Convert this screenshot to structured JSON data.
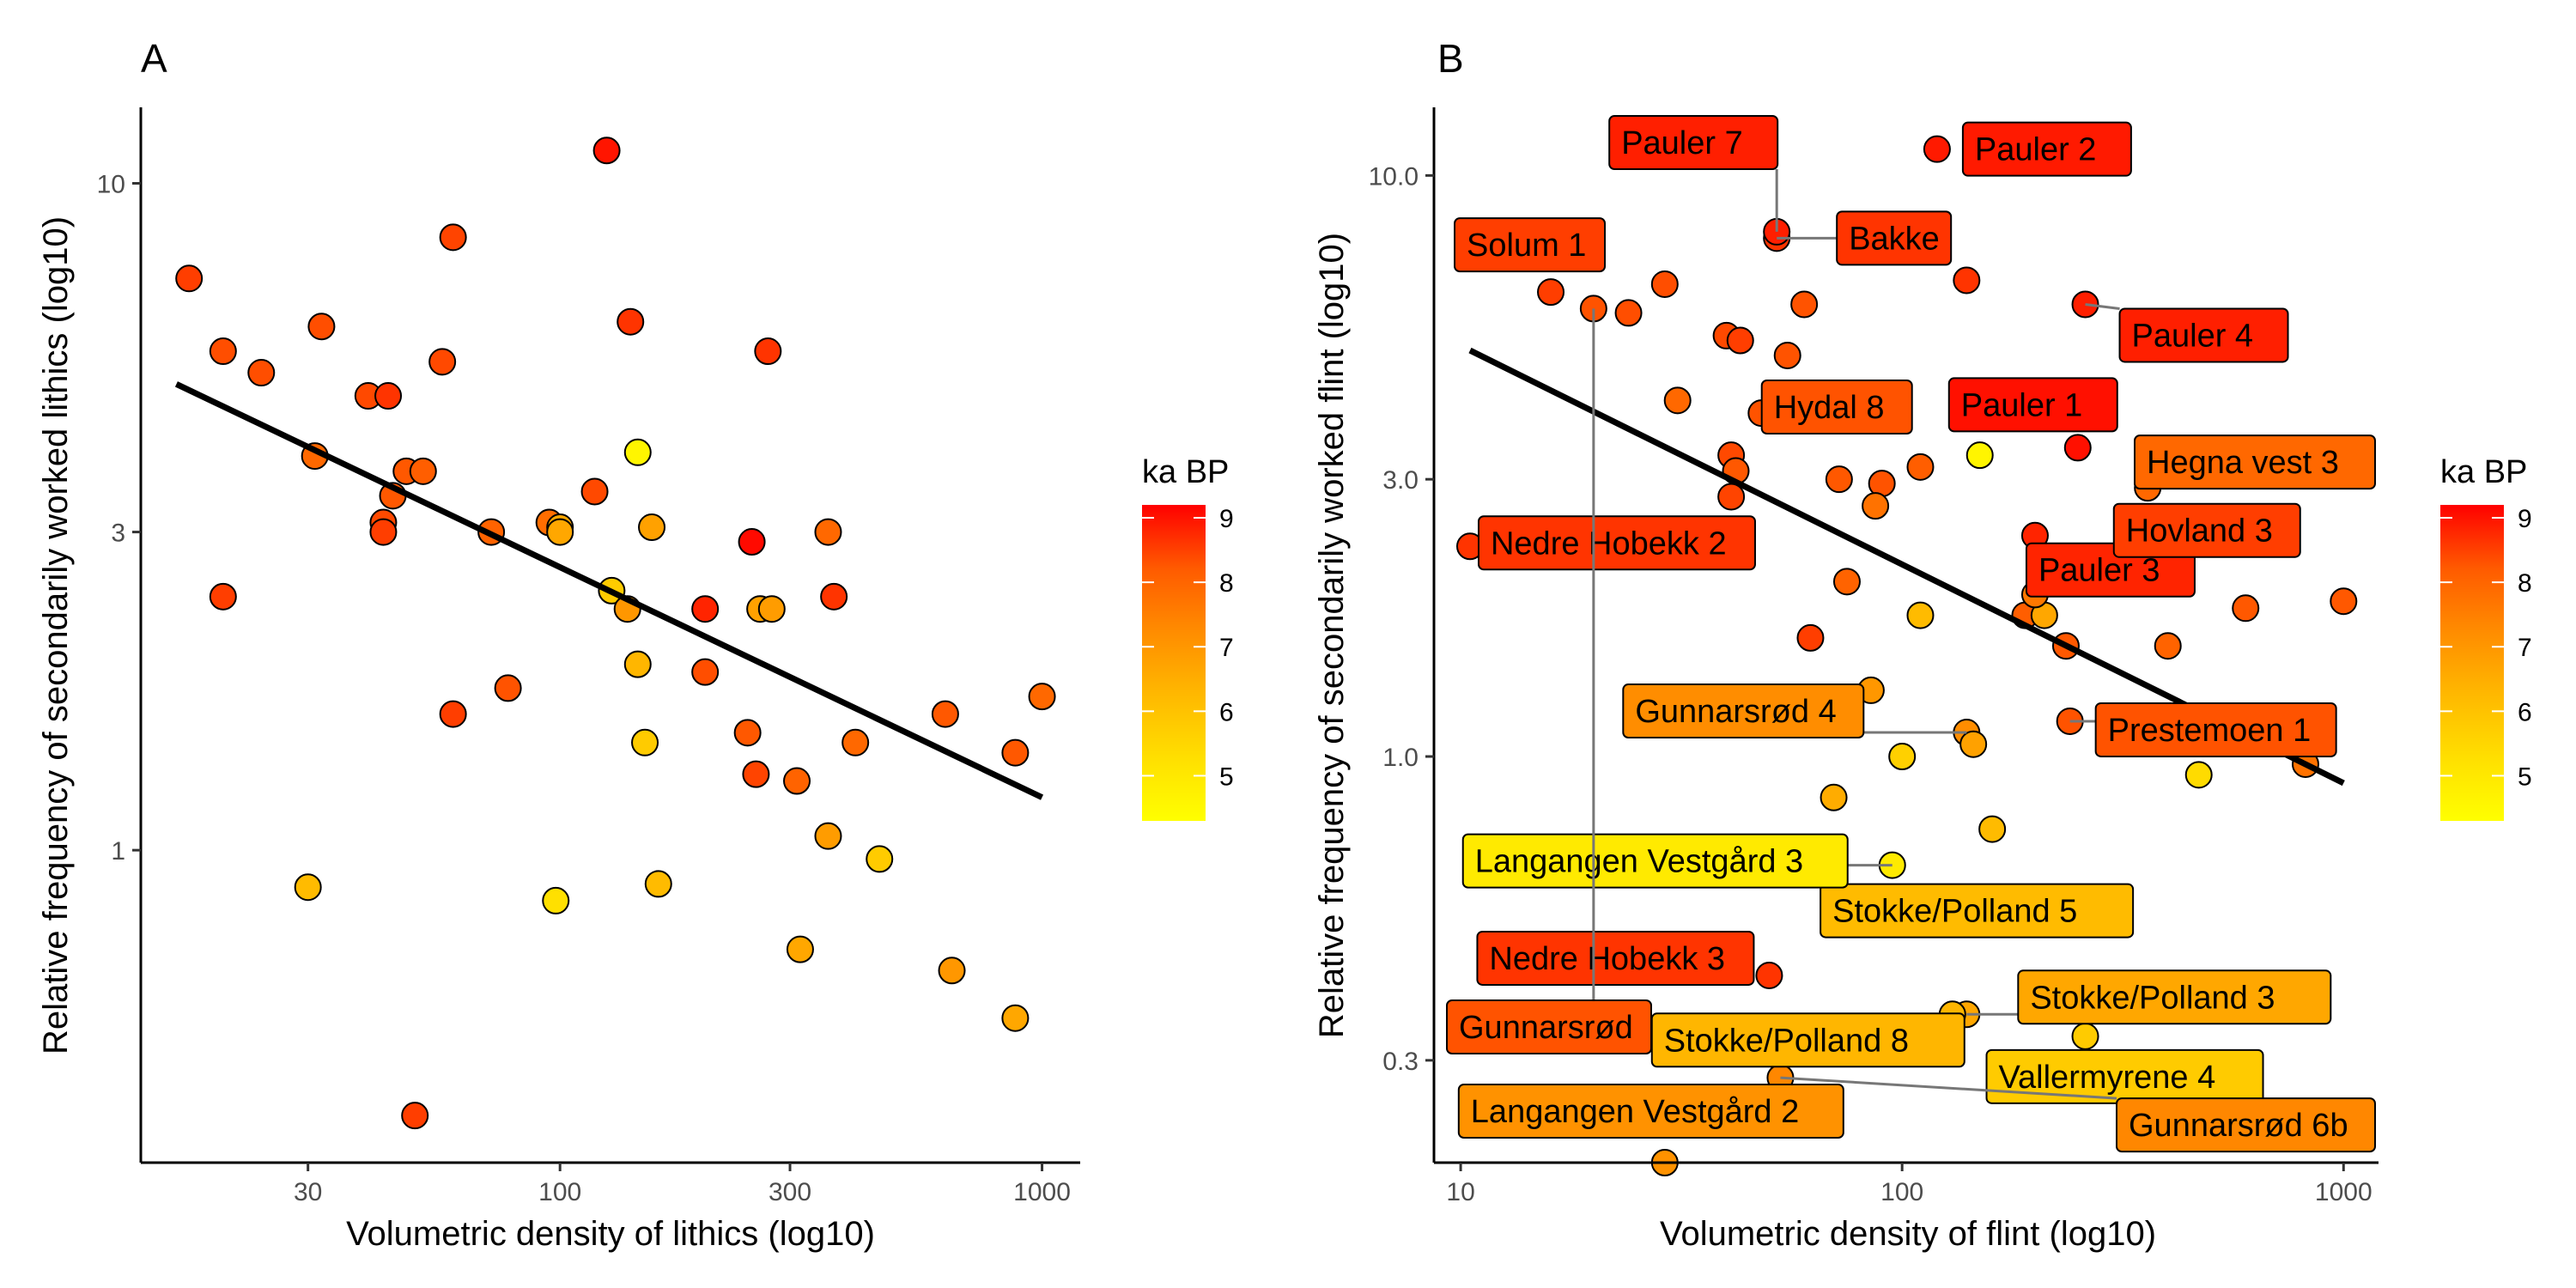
{
  "chart_data": [
    {
      "panel": "A",
      "type": "scatter",
      "xlabel": "Volumetric density of lithics (log10)",
      "ylabel": "Relative frequency of secondarily worked lithics (log10)",
      "x_scale": "log10",
      "y_scale": "log10",
      "xlim": [
        13.5,
        1200
      ],
      "ylim": [
        0.34,
        13
      ],
      "x_ticks": [
        30,
        100,
        300,
        1000
      ],
      "x_tick_labels": [
        "30",
        "100",
        "300",
        "1000"
      ],
      "y_ticks": [
        1,
        3,
        10
      ],
      "y_tick_labels": [
        "1",
        "3",
        "10"
      ],
      "legend": {
        "title": "ka BP",
        "ticks": [
          5,
          6,
          7,
          8,
          9
        ],
        "tick_labels": [
          "5",
          "6",
          "7",
          "8",
          "9"
        ],
        "range": [
          4.3,
          9.2
        ],
        "low_color": "#ffff00",
        "high_color": "#ff0000",
        "placement": "right"
      },
      "fit_line": {
        "x": [
          16,
          1000
        ],
        "y": [
          5.0,
          1.2
        ]
      },
      "points": [
        {
          "x": 17,
          "y": 7.2,
          "age": 8
        },
        {
          "x": 20,
          "y": 5.6,
          "age": 7.7
        },
        {
          "x": 24,
          "y": 5.2,
          "age": 7.7
        },
        {
          "x": 32,
          "y": 6.1,
          "age": 7.7
        },
        {
          "x": 40,
          "y": 4.8,
          "age": 7.8
        },
        {
          "x": 44,
          "y": 4.8,
          "age": 8.2
        },
        {
          "x": 60,
          "y": 8.3,
          "age": 7.9
        },
        {
          "x": 57,
          "y": 5.4,
          "age": 7.8
        },
        {
          "x": 125,
          "y": 11.2,
          "age": 8.8
        },
        {
          "x": 140,
          "y": 6.2,
          "age": 8.2
        },
        {
          "x": 270,
          "y": 5.6,
          "age": 8.2
        },
        {
          "x": 20,
          "y": 2.4,
          "age": 8
        },
        {
          "x": 31,
          "y": 3.9,
          "age": 7.2
        },
        {
          "x": 43,
          "y": 3.1,
          "age": 7.8
        },
        {
          "x": 43,
          "y": 3.0,
          "age": 8
        },
        {
          "x": 45,
          "y": 3.4,
          "age": 7.5
        },
        {
          "x": 48,
          "y": 3.7,
          "age": 7.5
        },
        {
          "x": 52,
          "y": 3.7,
          "age": 7.4
        },
        {
          "x": 72,
          "y": 3.0,
          "age": 7.3
        },
        {
          "x": 95,
          "y": 3.1,
          "age": 7.1
        },
        {
          "x": 100,
          "y": 3.05,
          "age": 6
        },
        {
          "x": 100,
          "y": 3.0,
          "age": 6
        },
        {
          "x": 118,
          "y": 3.45,
          "age": 7.8
        },
        {
          "x": 145,
          "y": 3.95,
          "age": 4.5
        },
        {
          "x": 155,
          "y": 3.05,
          "age": 6.1
        },
        {
          "x": 128,
          "y": 2.45,
          "age": 5.3
        },
        {
          "x": 138,
          "y": 2.3,
          "age": 6.3
        },
        {
          "x": 145,
          "y": 1.9,
          "age": 5.7
        },
        {
          "x": 200,
          "y": 2.3,
          "age": 8.5
        },
        {
          "x": 250,
          "y": 2.9,
          "age": 9
        },
        {
          "x": 260,
          "y": 2.3,
          "age": 6.1
        },
        {
          "x": 275,
          "y": 2.3,
          "age": 6.2
        },
        {
          "x": 360,
          "y": 3.0,
          "age": 7.2
        },
        {
          "x": 370,
          "y": 2.4,
          "age": 8.2
        },
        {
          "x": 60,
          "y": 1.6,
          "age": 8
        },
        {
          "x": 78,
          "y": 1.75,
          "age": 7.6
        },
        {
          "x": 200,
          "y": 1.85,
          "age": 7.7
        },
        {
          "x": 150,
          "y": 1.45,
          "age": 5.3
        },
        {
          "x": 245,
          "y": 1.5,
          "age": 7.5
        },
        {
          "x": 255,
          "y": 1.3,
          "age": 7.9
        },
        {
          "x": 310,
          "y": 1.27,
          "age": 7.3
        },
        {
          "x": 410,
          "y": 1.45,
          "age": 7.2
        },
        {
          "x": 630,
          "y": 1.6,
          "age": 7.5
        },
        {
          "x": 1000,
          "y": 1.7,
          "age": 7.2
        },
        {
          "x": 880,
          "y": 1.4,
          "age": 7.5
        },
        {
          "x": 360,
          "y": 1.05,
          "age": 6.2
        },
        {
          "x": 460,
          "y": 0.97,
          "age": 5.3
        },
        {
          "x": 30,
          "y": 0.88,
          "age": 5.6
        },
        {
          "x": 98,
          "y": 0.84,
          "age": 4.9
        },
        {
          "x": 160,
          "y": 0.89,
          "age": 5.6
        },
        {
          "x": 315,
          "y": 0.71,
          "age": 6
        },
        {
          "x": 650,
          "y": 0.66,
          "age": 6.3
        },
        {
          "x": 880,
          "y": 0.56,
          "age": 6
        },
        {
          "x": 50,
          "y": 0.4,
          "age": 8
        }
      ]
    },
    {
      "panel": "B",
      "type": "scatter",
      "xlabel": "Volumetric density of flint (log10)",
      "ylabel": "Relative frequency of secondarily worked flint (log10)",
      "x_scale": "log10",
      "y_scale": "log10",
      "xlim": [
        8.7,
        1200
      ],
      "ylim": [
        0.2,
        13.1
      ],
      "x_ticks": [
        10,
        100,
        1000
      ],
      "x_tick_labels": [
        "10",
        "100",
        "1000"
      ],
      "y_ticks": [
        0.3,
        1,
        3,
        10
      ],
      "y_tick_labels": [
        "0.3",
        "1.0",
        "3.0",
        "10.0"
      ],
      "legend": {
        "title": "ka BP",
        "ticks": [
          5,
          6,
          7,
          8,
          9
        ],
        "tick_labels": [
          "5",
          "6",
          "7",
          "8",
          "9"
        ],
        "range": [
          4.3,
          9.2
        ],
        "low_color": "#ffff00",
        "high_color": "#ff0000",
        "placement": "right"
      },
      "fit_line": {
        "x": [
          10.5,
          1000
        ],
        "y": [
          5.0,
          0.9
        ]
      },
      "points": [
        {
          "x": 10.5,
          "y": 2.3,
          "age": 8.2,
          "label": "Nedre Hobekk 2"
        },
        {
          "x": 52,
          "y": 7.8,
          "age": 8.2,
          "label": "Bakke"
        },
        {
          "x": 120,
          "y": 11.1,
          "age": 8.7,
          "label": "Pauler 2"
        },
        {
          "x": 260,
          "y": 6.0,
          "age": 8.6,
          "label": "Pauler 4"
        },
        {
          "x": 250,
          "y": 3.4,
          "age": 8.9,
          "label": "Pauler 1"
        },
        {
          "x": 200,
          "y": 2.4,
          "age": 8.5,
          "label": "Pauler 3"
        },
        {
          "x": 360,
          "y": 2.9,
          "age": 7.2,
          "label": "Hegna vest 3"
        },
        {
          "x": 330,
          "y": 2.45,
          "age": 8,
          "label": "Hovland 3"
        },
        {
          "x": 240,
          "y": 1.15,
          "age": 7.6,
          "label": "Prestemoen 1"
        },
        {
          "x": 140,
          "y": 1.1,
          "age": 6.5,
          "label": "Gunnarsrød 4"
        },
        {
          "x": 160,
          "y": 0.75,
          "age": 5.6,
          "label": "Stokke/Polland 5"
        },
        {
          "x": 95,
          "y": 0.65,
          "age": 4.7,
          "label": "Langangen Vestgård 3"
        },
        {
          "x": 140,
          "y": 0.36,
          "age": 6,
          "label": "Stokke/Polland 3"
        },
        {
          "x": 130,
          "y": 0.36,
          "age": 5.7,
          "label": "Stokke/Polland 8"
        },
        {
          "x": 260,
          "y": 0.33,
          "age": 5.3,
          "label": "Vallermyrene 4"
        },
        {
          "x": 50,
          "y": 0.42,
          "age": 8.2,
          "label": "Nedre Hobekk 3"
        },
        {
          "x": 53,
          "y": 0.28,
          "age": 6.6,
          "label": "Gunnarsrød 6b"
        },
        {
          "x": 29,
          "y": 0.2,
          "age": 6.4,
          "label": "Langangen Vestgård 2"
        },
        {
          "x": 16,
          "y": 6.3,
          "age": 8,
          "label": "Solum 1"
        },
        {
          "x": 52,
          "y": 8.0,
          "age": 8.6,
          "label": "Pauler 7"
        },
        {
          "x": 55,
          "y": 4.9,
          "age": 7.6,
          "label": "Hydal 8"
        },
        {
          "x": 20,
          "y": 5.9,
          "age": 7.6,
          "label": "Gunnarsrød"
        },
        {
          "x": 24,
          "y": 5.8,
          "age": 7.7
        },
        {
          "x": 29,
          "y": 6.5,
          "age": 7.7
        },
        {
          "x": 40,
          "y": 5.3,
          "age": 7.8
        },
        {
          "x": 43,
          "y": 5.2,
          "age": 8
        },
        {
          "x": 60,
          "y": 6.0,
          "age": 7.6
        },
        {
          "x": 140,
          "y": 6.6,
          "age": 8.2
        },
        {
          "x": 31,
          "y": 4.1,
          "age": 7.2
        },
        {
          "x": 48,
          "y": 3.9,
          "age": 7.6
        },
        {
          "x": 52,
          "y": 3.8,
          "age": 7.6
        },
        {
          "x": 41,
          "y": 3.3,
          "age": 7.8
        },
        {
          "x": 42,
          "y": 3.1,
          "age": 7.5
        },
        {
          "x": 41,
          "y": 2.8,
          "age": 7.9
        },
        {
          "x": 72,
          "y": 3.0,
          "age": 7.5
        },
        {
          "x": 90,
          "y": 2.95,
          "age": 7.6
        },
        {
          "x": 110,
          "y": 3.15,
          "age": 7.4
        },
        {
          "x": 150,
          "y": 3.3,
          "age": 4.5
        },
        {
          "x": 87,
          "y": 2.7,
          "age": 7
        },
        {
          "x": 75,
          "y": 2.0,
          "age": 7.3
        },
        {
          "x": 62,
          "y": 1.6,
          "age": 8
        },
        {
          "x": 110,
          "y": 1.75,
          "age": 5.6
        },
        {
          "x": 190,
          "y": 1.75,
          "age": 7.4
        },
        {
          "x": 210,
          "y": 1.75,
          "age": 6
        },
        {
          "x": 235,
          "y": 1.55,
          "age": 7.5
        },
        {
          "x": 400,
          "y": 1.55,
          "age": 7.3
        },
        {
          "x": 200,
          "y": 1.9,
          "age": 6.9
        },
        {
          "x": 600,
          "y": 1.8,
          "age": 7.5
        },
        {
          "x": 1000,
          "y": 1.85,
          "age": 7.5
        },
        {
          "x": 85,
          "y": 1.3,
          "age": 6.3
        },
        {
          "x": 145,
          "y": 1.05,
          "age": 6.1
        },
        {
          "x": 100,
          "y": 1.0,
          "age": 5.2
        },
        {
          "x": 70,
          "y": 0.85,
          "age": 5.9
        },
        {
          "x": 470,
          "y": 0.93,
          "age": 5
        },
        {
          "x": 820,
          "y": 0.97,
          "age": 7
        }
      ]
    }
  ]
}
